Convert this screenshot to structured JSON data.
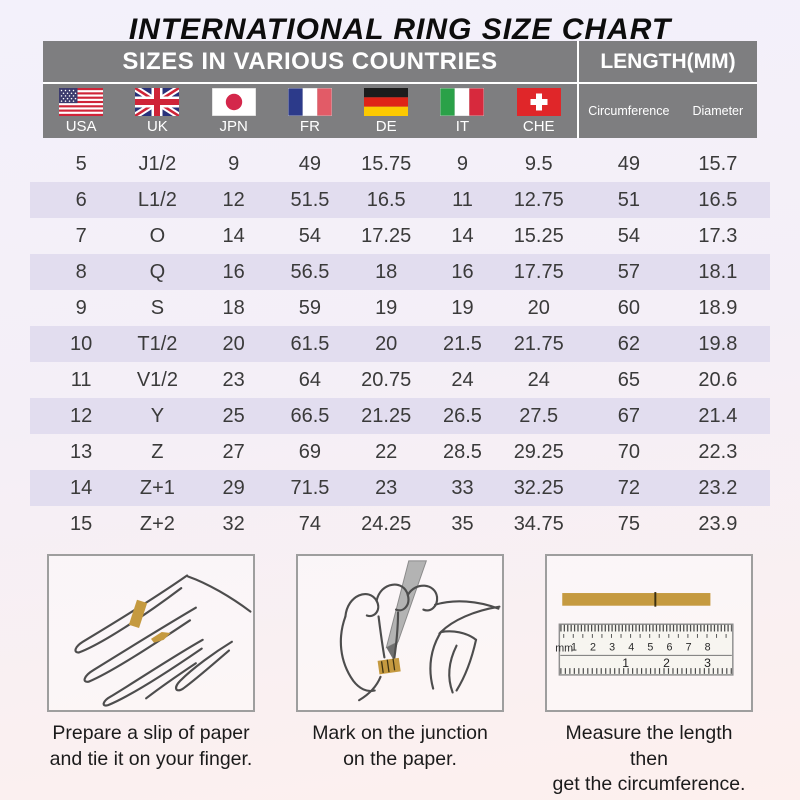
{
  "title": "INTERNATIONAL RING SIZE CHART",
  "table": {
    "countries_header": "SIZES IN VARIOUS COUNTRIES",
    "length_header": "LENGTH(MM)",
    "circumference_label": "Circumference",
    "diameter_label": "Diameter",
    "countries": [
      {
        "code": "USA",
        "flag": "usa-flag-icon"
      },
      {
        "code": "UK",
        "flag": "uk-flag-icon"
      },
      {
        "code": "JPN",
        "flag": "japan-flag-icon"
      },
      {
        "code": "FR",
        "flag": "france-flag-icon"
      },
      {
        "code": "DE",
        "flag": "germany-flag-icon"
      },
      {
        "code": "IT",
        "flag": "italy-flag-icon"
      },
      {
        "code": "CHE",
        "flag": "switzerland-flag-icon"
      }
    ],
    "rows": [
      [
        "5",
        "J1/2",
        "9",
        "49",
        "15.75",
        "9",
        "9.5",
        "49",
        "15.7"
      ],
      [
        "6",
        "L1/2",
        "12",
        "51.5",
        "16.5",
        "11",
        "12.75",
        "51",
        "16.5"
      ],
      [
        "7",
        "O",
        "14",
        "54",
        "17.25",
        "14",
        "15.25",
        "54",
        "17.3"
      ],
      [
        "8",
        "Q",
        "16",
        "56.5",
        "18",
        "16",
        "17.75",
        "57",
        "18.1"
      ],
      [
        "9",
        "S",
        "18",
        "59",
        "19",
        "19",
        "20",
        "60",
        "18.9"
      ],
      [
        "10",
        "T1/2",
        "20",
        "61.5",
        "20",
        "21.5",
        "21.75",
        "62",
        "19.8"
      ],
      [
        "11",
        "V1/2",
        "23",
        "64",
        "20.75",
        "24",
        "24",
        "65",
        "20.6"
      ],
      [
        "12",
        "Y",
        "25",
        "66.5",
        "21.25",
        "26.5",
        "27.5",
        "67",
        "21.4"
      ],
      [
        "13",
        "Z",
        "27",
        "69",
        "22",
        "28.5",
        "29.25",
        "70",
        "22.3"
      ],
      [
        "14",
        "Z+1",
        "29",
        "71.5",
        "23",
        "33",
        "32.25",
        "72",
        "23.2"
      ],
      [
        "15",
        "Z+2",
        "32",
        "74",
        "24.25",
        "35",
        "34.75",
        "75",
        "23.9"
      ]
    ]
  },
  "chart_data": {
    "type": "table",
    "title": "INTERNATIONAL RING SIZE CHART",
    "column_groups": [
      "SIZES IN VARIOUS COUNTRIES",
      "LENGTH(MM)"
    ],
    "columns": [
      "USA",
      "UK",
      "JPN",
      "FR",
      "DE",
      "IT",
      "CHE",
      "Circumference",
      "Diameter"
    ],
    "rows": [
      [
        "5",
        "J1/2",
        "9",
        "49",
        "15.75",
        "9",
        "9.5",
        "49",
        "15.7"
      ],
      [
        "6",
        "L1/2",
        "12",
        "51.5",
        "16.5",
        "11",
        "12.75",
        "51",
        "16.5"
      ],
      [
        "7",
        "O",
        "14",
        "54",
        "17.25",
        "14",
        "15.25",
        "54",
        "17.3"
      ],
      [
        "8",
        "Q",
        "16",
        "56.5",
        "18",
        "16",
        "17.75",
        "57",
        "18.1"
      ],
      [
        "9",
        "S",
        "18",
        "59",
        "19",
        "19",
        "20",
        "60",
        "18.9"
      ],
      [
        "10",
        "T1/2",
        "20",
        "61.5",
        "20",
        "21.5",
        "21.75",
        "62",
        "19.8"
      ],
      [
        "11",
        "V1/2",
        "23",
        "64",
        "20.75",
        "24",
        "24",
        "65",
        "20.6"
      ],
      [
        "12",
        "Y",
        "25",
        "66.5",
        "21.25",
        "26.5",
        "27.5",
        "67",
        "21.4"
      ],
      [
        "13",
        "Z",
        "27",
        "69",
        "22",
        "28.5",
        "29.25",
        "70",
        "22.3"
      ],
      [
        "14",
        "Z+1",
        "29",
        "71.5",
        "23",
        "33",
        "32.25",
        "72",
        "23.2"
      ],
      [
        "15",
        "Z+2",
        "32",
        "74",
        "24.25",
        "35",
        "34.75",
        "75",
        "23.9"
      ]
    ]
  },
  "instructions": [
    {
      "line1": "Prepare a slip of paper",
      "line2": "and tie it on your finger.",
      "illustration": "hand-with-paper-strip"
    },
    {
      "line1": "Mark on the junction",
      "line2": "on the paper.",
      "illustration": "hand-marking-with-pen"
    },
    {
      "line1": "Measure the length then",
      "line2": "get the circumference.",
      "illustration": "ruler-with-paper-strip"
    }
  ],
  "ruler": {
    "unit_label": "mm",
    "cm": [
      "1",
      "2",
      "3",
      "4",
      "5",
      "6",
      "7",
      "8"
    ],
    "inch": [
      "1",
      "2",
      "3"
    ]
  },
  "colors": {
    "header_bg": "#7e7e80",
    "band": "#e2ddef",
    "gold_strip": "#c59a40",
    "bg_top": "#f3f1fb",
    "bg_bottom": "#fdf0ee"
  }
}
